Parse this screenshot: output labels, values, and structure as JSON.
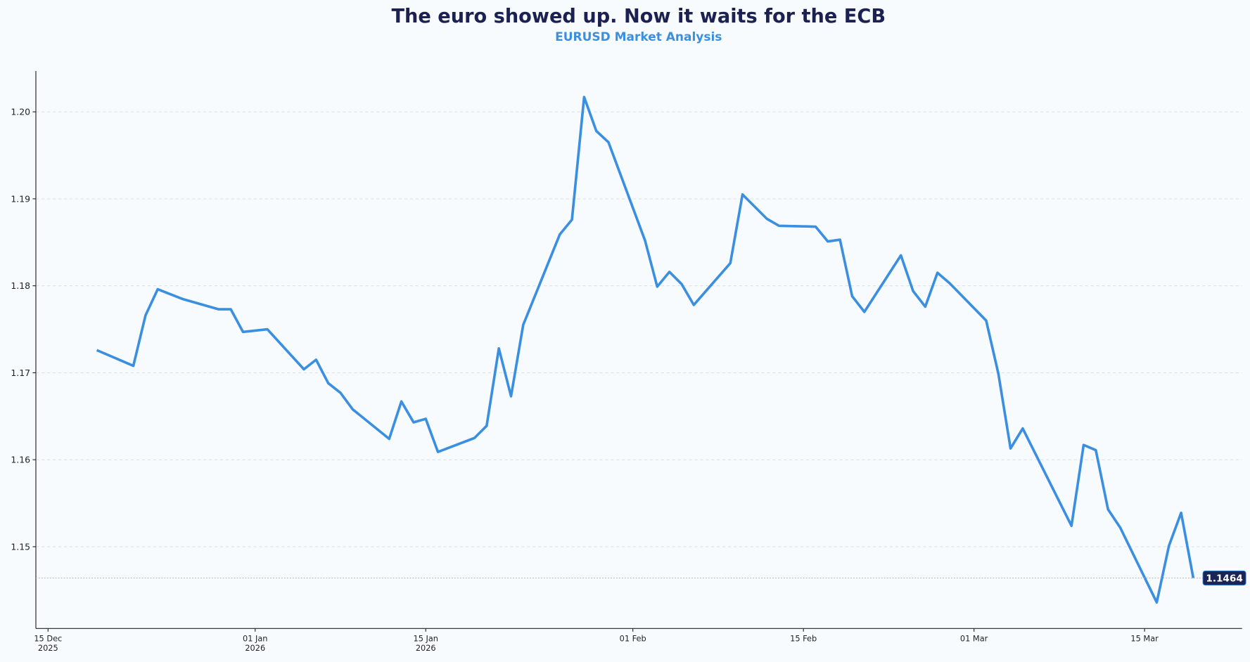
{
  "chart_data": {
    "type": "line",
    "title": "The euro showed up. Now it waits for the ECB",
    "subtitle": "EURUSD Market Analysis",
    "x": [
      "2025-12-19",
      "2025-12-22",
      "2025-12-23",
      "2025-12-24",
      "2025-12-26",
      "2025-12-29",
      "2025-12-30",
      "2025-12-31",
      "2026-01-02",
      "2026-01-05",
      "2026-01-06",
      "2026-01-07",
      "2026-01-08",
      "2026-01-09",
      "2026-01-12",
      "2026-01-13",
      "2026-01-14",
      "2026-01-15",
      "2026-01-16",
      "2026-01-19",
      "2026-01-20",
      "2026-01-21",
      "2026-01-22",
      "2026-01-23",
      "2026-01-26",
      "2026-01-27",
      "2026-01-28",
      "2026-01-29",
      "2026-01-30",
      "2026-02-02",
      "2026-02-03",
      "2026-02-04",
      "2026-02-05",
      "2026-02-06",
      "2026-02-09",
      "2026-02-10",
      "2026-02-12",
      "2026-02-13",
      "2026-02-16",
      "2026-02-17",
      "2026-02-18",
      "2026-02-19",
      "2026-02-20",
      "2026-02-23",
      "2026-02-24",
      "2026-02-25",
      "2026-02-26",
      "2026-02-27",
      "2026-03-02",
      "2026-03-03",
      "2026-03-04",
      "2026-03-05",
      "2026-03-09",
      "2026-03-10",
      "2026-03-11",
      "2026-03-12",
      "2026-03-13",
      "2026-03-16",
      "2026-03-17",
      "2026-03-18",
      "2026-03-19"
    ],
    "series": [
      {
        "name": "EURUSD",
        "color": "#3a8fe0",
        "values": [
          1.1726,
          1.1708,
          1.1766,
          1.1796,
          1.1785,
          1.1773,
          1.1773,
          1.1747,
          1.175,
          1.1704,
          1.1715,
          1.1688,
          1.1677,
          1.1658,
          1.1624,
          1.1667,
          1.1643,
          1.1647,
          1.1609,
          1.1625,
          1.1639,
          1.1728,
          1.1673,
          1.1755,
          1.1859,
          1.1876,
          1.2017,
          1.1978,
          1.1965,
          1.1852,
          1.1799,
          1.1816,
          1.1802,
          1.1778,
          1.1826,
          1.1905,
          1.1877,
          1.1869,
          1.1868,
          1.1851,
          1.1853,
          1.1788,
          1.177,
          1.1835,
          1.1794,
          1.1776,
          1.1815,
          1.1803,
          1.176,
          1.1699,
          1.1613,
          1.1636,
          1.1524,
          1.1617,
          1.1611,
          1.1543,
          1.1522,
          1.1436,
          1.1501,
          1.1539,
          1.1464
        ]
      }
    ],
    "xlim": [
      "2025-12-14",
      "2026-03-23"
    ],
    "xticks": [
      {
        "value": "2025-12-15",
        "label": "15 Dec\n2025"
      },
      {
        "value": "2026-01-01",
        "label": "01 Jan\n2026"
      },
      {
        "value": "2026-01-15",
        "label": "15 Jan\n2026"
      },
      {
        "value": "2026-02-01",
        "label": "01 Feb"
      },
      {
        "value": "2026-02-15",
        "label": "15 Feb"
      },
      {
        "value": "2026-03-01",
        "label": "01 Mar"
      },
      {
        "value": "2026-03-15",
        "label": "15 Mar"
      }
    ],
    "ylim": [
      1.1406,
      1.2047
    ],
    "yticks": [
      1.15,
      1.16,
      1.17,
      1.18,
      1.19,
      {
        "value": 1.2,
        "label": "1.20"
      }
    ],
    "grid": true
  }
}
